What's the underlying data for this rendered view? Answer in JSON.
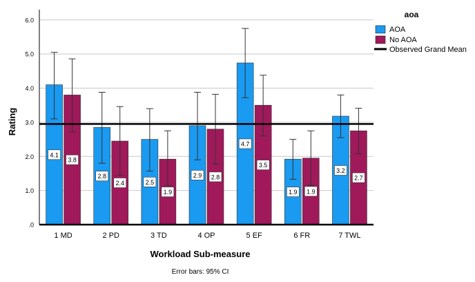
{
  "chart_data": {
    "type": "bar",
    "title": "",
    "xlabel": "Workload Sub-measure",
    "ylabel": "Rating",
    "ylim": [
      0,
      6.3
    ],
    "yticks": [
      0,
      1,
      2,
      3,
      4,
      5,
      6
    ],
    "ytick_labels": [
      ".0",
      "1.0",
      "2.0",
      "3.0",
      "4.0",
      "5.0",
      "6.0"
    ],
    "grid": true,
    "categories": [
      "1 MD",
      "2 PD",
      "3 TD",
      "4 OP",
      "5 EF",
      "6 FR",
      "7 TWL"
    ],
    "series": [
      {
        "name": "AOA",
        "color": "#1a9af0",
        "values": [
          4.1,
          2.85,
          2.5,
          2.9,
          4.74,
          1.92,
          3.18
        ],
        "labels": [
          "4.1",
          "2.8",
          "2.5",
          "2.9",
          "4.7",
          "1.9",
          "3.2"
        ],
        "err_low": [
          3.1,
          1.8,
          1.57,
          1.9,
          3.72,
          1.33,
          2.55
        ],
        "err_high": [
          5.05,
          3.88,
          3.4,
          3.88,
          5.75,
          2.5,
          3.8
        ]
      },
      {
        "name": "No AOA",
        "color": "#a0195a",
        "values": [
          3.8,
          2.45,
          1.92,
          2.8,
          3.5,
          1.95,
          2.75
        ],
        "labels": [
          "3.8",
          "2.4",
          "1.9",
          "2.8",
          "3.5",
          "1.9",
          "2.7"
        ],
        "err_low": [
          2.72,
          1.45,
          1.15,
          1.78,
          2.6,
          1.15,
          2.08
        ],
        "err_high": [
          4.86,
          3.46,
          2.75,
          3.82,
          4.38,
          2.75,
          3.41
        ]
      }
    ],
    "reference_line": {
      "label": "Observed Grand Mean",
      "value": 2.95
    },
    "legend": {
      "title": "aoa",
      "position": "top-right"
    },
    "footnote": "Error bars: 95% CI"
  }
}
